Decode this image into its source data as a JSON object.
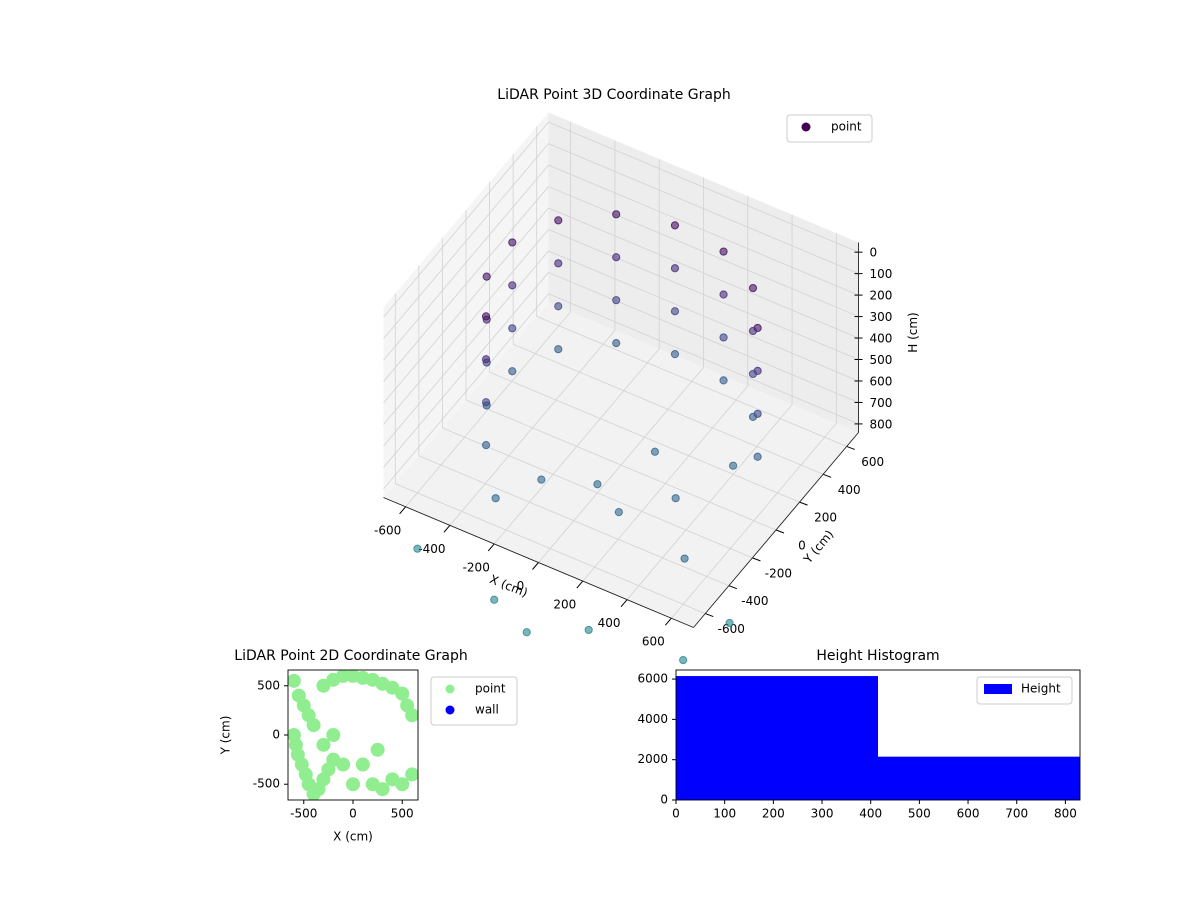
{
  "chart_data": [
    {
      "type": "scatter3d",
      "title": "LiDAR Point 3D Coordinate Graph",
      "xlabel": "X (cm)",
      "ylabel": "Y (cm)",
      "zlabel": "H (cm)",
      "xlim": [
        -700,
        700
      ],
      "ylim": [
        -700,
        700
      ],
      "zlim": [
        -45,
        840
      ],
      "zinverted": true,
      "xticks": [
        -600,
        -400,
        -200,
        0,
        200,
        400,
        600
      ],
      "yticks": [
        -600,
        -400,
        -200,
        0,
        200,
        400,
        600
      ],
      "zticks": [
        0,
        100,
        200,
        300,
        400,
        500,
        600,
        700,
        800
      ],
      "colormap": "viridis",
      "clim": [
        0,
        2400
      ],
      "legend": "upper right",
      "grid": true,
      "series": [
        {
          "name": "point",
          "color": "#440154",
          "x": [
            517,
            517,
            517,
            517,
            389,
            389,
            389,
            389,
            188,
            188,
            188,
            188,
            -48,
            -48,
            -48,
            -48,
            -275,
            -275,
            -275,
            -275,
            -451,
            -451,
            -451,
            -451,
            -542,
            -542,
            -542,
            -542,
            -531,
            -531,
            -531,
            -531,
            -421,
            -421,
            -421,
            -421,
            0,
            150,
            300,
            -200,
            100,
            400,
            -300,
            500,
            -200,
            200,
            600,
            650,
            0,
            -600
          ],
          "y": [
            188,
            188,
            188,
            188,
            389,
            389,
            389,
            389,
            517,
            517,
            517,
            517,
            548,
            548,
            548,
            548,
            476,
            476,
            476,
            476,
            315,
            315,
            315,
            315,
            96,
            96,
            96,
            96,
            -142,
            -142,
            -142,
            -142,
            -354,
            -354,
            -354,
            -354,
            -200,
            -300,
            -100,
            -300,
            100,
            200,
            -500,
            -400,
            -700,
            -650,
            -600,
            -300,
            -800,
            -600
          ],
          "z": [
            100,
            300,
            500,
            700,
            100,
            300,
            500,
            700,
            100,
            300,
            500,
            700,
            100,
            300,
            500,
            700,
            100,
            300,
            500,
            700,
            100,
            300,
            500,
            700,
            100,
            300,
            500,
            700,
            100,
            300,
            500,
            700,
            100,
            300,
            500,
            700,
            800,
            800,
            800,
            800,
            800,
            800,
            800,
            800,
            1100,
            1100,
            1100,
            1100,
            1100,
            1100
          ]
        }
      ]
    },
    {
      "type": "scatter",
      "title": "LiDAR Point 2D Coordinate Graph",
      "xlabel": "X (cm)",
      "ylabel": "Y (cm)",
      "xlim": [
        -660,
        660
      ],
      "ylim": [
        -660,
        660
      ],
      "xticks": [
        -500,
        0,
        500
      ],
      "yticks": [
        -500,
        0,
        500
      ],
      "legend": "outside right",
      "series": [
        {
          "name": "point",
          "color": "#90ee90",
          "x": [
            -600,
            -550,
            -500,
            -450,
            -400,
            -300,
            -200,
            -100,
            0,
            100,
            200,
            300,
            400,
            500,
            550,
            600,
            -600,
            -580,
            -560,
            -520,
            -480,
            -450,
            -400,
            -350,
            -300,
            -250,
            -200,
            200,
            300,
            400,
            500,
            600,
            -300,
            -100,
            0,
            100,
            -200,
            250
          ],
          "y": [
            550,
            400,
            300,
            200,
            100,
            500,
            560,
            600,
            600,
            580,
            560,
            520,
            480,
            420,
            300,
            200,
            0,
            -100,
            -200,
            -300,
            -400,
            -500,
            -600,
            -550,
            -450,
            -350,
            -250,
            -500,
            -550,
            -450,
            -500,
            -400,
            -100,
            -300,
            -500,
            -300,
            0,
            -150
          ]
        },
        {
          "name": "wall",
          "color": "#0000ff",
          "x": [],
          "y": []
        }
      ]
    },
    {
      "type": "histogram",
      "title": "Height Histogram",
      "bins": [
        0,
        415,
        830
      ],
      "series": [
        {
          "name": "Height",
          "color": "#0000ff",
          "values": [
            6150,
            2150
          ]
        }
      ],
      "xlim": [
        0,
        830
      ],
      "ylim": [
        0,
        6450
      ],
      "xticks": [
        0,
        100,
        200,
        300,
        400,
        500,
        600,
        700,
        800
      ],
      "yticks": [
        0,
        2000,
        4000,
        6000
      ],
      "legend": "upper right"
    }
  ]
}
